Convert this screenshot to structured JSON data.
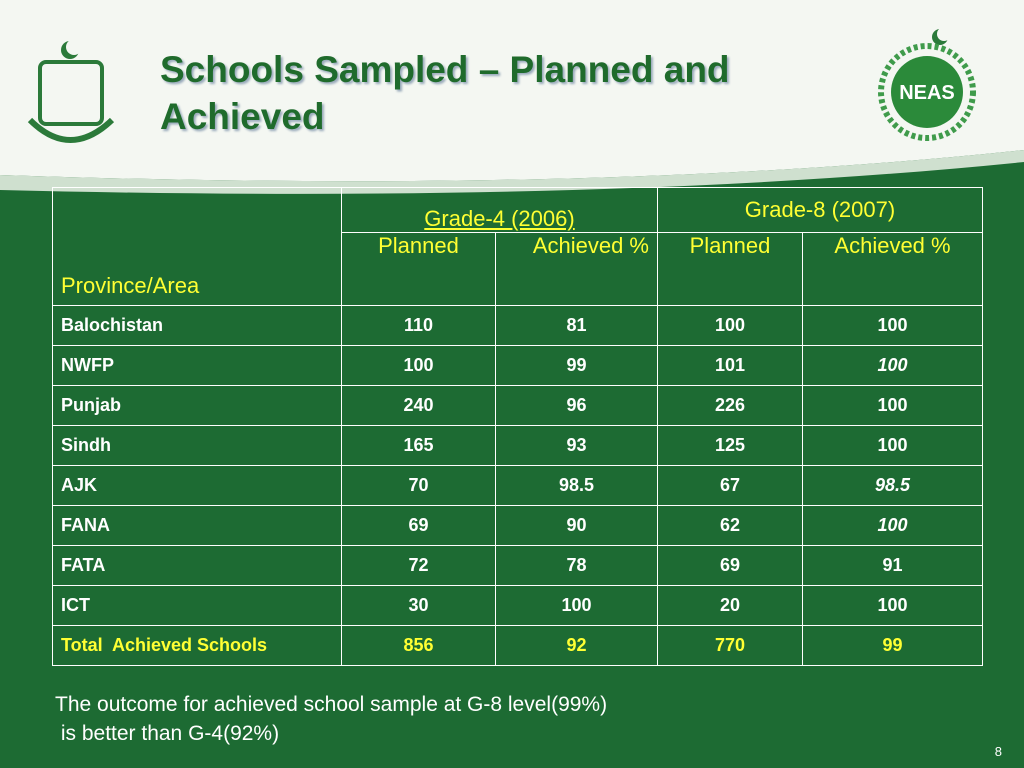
{
  "slide": {
    "title": "Schools Sampled – Planned and Achieved",
    "logo_text": "NEAS",
    "table": {
      "header": {
        "province": "Province/Area",
        "grade4": "Grade-4 (2006)",
        "grade8": "Grade-8 (2007)",
        "planned4": "Planned",
        "achieved4": "Achieved %",
        "planned8": "Planned",
        "achieved8": "Achieved %"
      },
      "rows": [
        [
          "Balochistan",
          "110",
          "81",
          "100",
          "100"
        ],
        [
          "NWFP",
          "100",
          "99",
          "101",
          "100"
        ],
        [
          "Punjab",
          "240",
          "96",
          "226",
          "100"
        ],
        [
          "Sindh",
          "165",
          "93",
          "125",
          "100"
        ],
        [
          "AJK",
          "70",
          "98.5",
          "67",
          "98.5"
        ],
        [
          "FANA",
          "69",
          "90",
          "62",
          "100"
        ],
        [
          "FATA",
          "72",
          "78",
          "69",
          "91"
        ],
        [
          "ICT",
          "30",
          "100",
          "20",
          "100"
        ]
      ],
      "total": [
        "Total  Achieved Schools",
        "856",
        "92",
        "770",
        "99"
      ]
    },
    "note": [
      "The outcome for achieved school sample at G-8 level(99%)",
      " is better than G-4(92%)"
    ],
    "page_number": "8"
  }
}
